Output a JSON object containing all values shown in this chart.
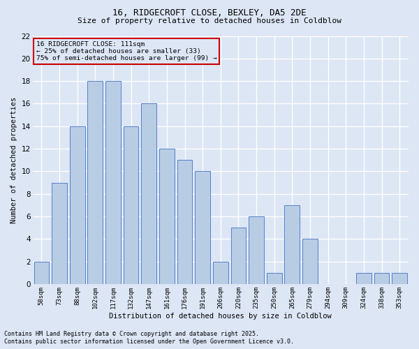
{
  "title1": "16, RIDGECROFT CLOSE, BEXLEY, DA5 2DE",
  "title2": "Size of property relative to detached houses in Coldblow",
  "xlabel": "Distribution of detached houses by size in Coldblow",
  "ylabel": "Number of detached properties",
  "bar_labels": [
    "58sqm",
    "73sqm",
    "88sqm",
    "102sqm",
    "117sqm",
    "132sqm",
    "147sqm",
    "161sqm",
    "176sqm",
    "191sqm",
    "206sqm",
    "220sqm",
    "235sqm",
    "250sqm",
    "265sqm",
    "279sqm",
    "294sqm",
    "309sqm",
    "324sqm",
    "338sqm",
    "353sqm"
  ],
  "bar_values": [
    2,
    9,
    14,
    18,
    18,
    14,
    16,
    12,
    11,
    10,
    2,
    5,
    6,
    1,
    7,
    4,
    0,
    0,
    1,
    1,
    1
  ],
  "bar_color": "#b8cce4",
  "bar_edge_color": "#4472c4",
  "bg_color": "#dce6f5",
  "grid_color": "#ffffff",
  "annotation_box_text": "16 RIDGECROFT CLOSE: 111sqm\n← 25% of detached houses are smaller (33)\n75% of semi-detached houses are larger (99) →",
  "annotation_box_color": "#cc0000",
  "ylim": [
    0,
    22
  ],
  "yticks": [
    0,
    2,
    4,
    6,
    8,
    10,
    12,
    14,
    16,
    18,
    20,
    22
  ],
  "footnote1": "Contains HM Land Registry data © Crown copyright and database right 2025.",
  "footnote2": "Contains public sector information licensed under the Open Government Licence v3.0."
}
